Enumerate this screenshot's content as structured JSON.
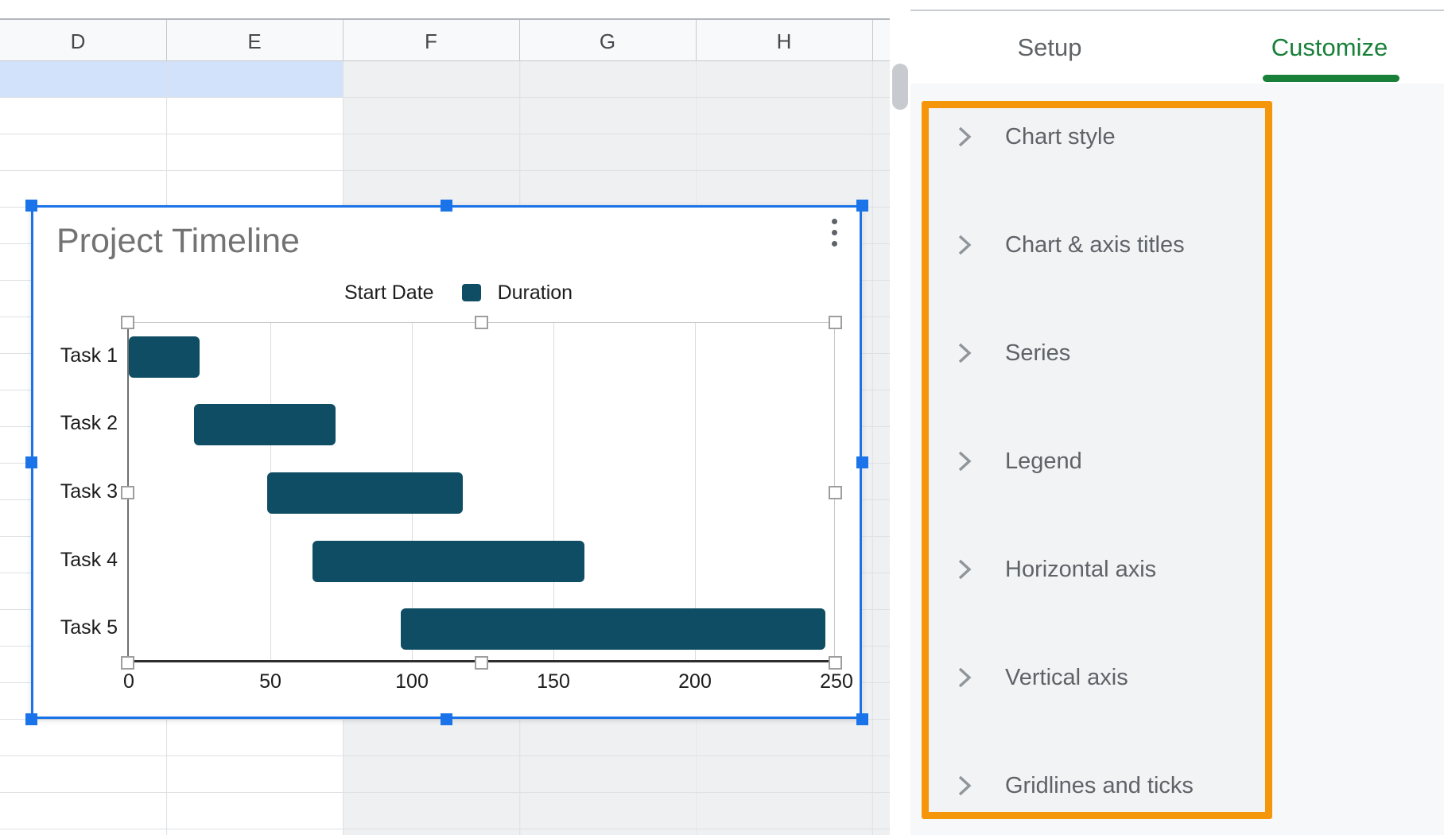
{
  "spreadsheet": {
    "column_headers": [
      "D",
      "E",
      "F",
      "G",
      "H"
    ]
  },
  "chart_editor": {
    "tabs": [
      {
        "label": "Setup",
        "active": false
      },
      {
        "label": "Customize",
        "active": true
      }
    ],
    "active_tab_color": "#188038",
    "highlight_box_color": "#f5960a",
    "sections": [
      {
        "label": "Chart style"
      },
      {
        "label": "Chart & axis titles"
      },
      {
        "label": "Series"
      },
      {
        "label": "Legend"
      },
      {
        "label": "Horizontal axis"
      },
      {
        "label": "Vertical axis"
      },
      {
        "label": "Gridlines and ticks"
      }
    ]
  },
  "chart_data": {
    "type": "bar",
    "orientation": "horizontal",
    "stacked_gantt": true,
    "title": "Project Timeline",
    "title_color": "#737373",
    "categories": [
      "Task 1",
      "Task 2",
      "Task 3",
      "Task 4",
      "Task 5"
    ],
    "series": [
      {
        "name": "Start Date",
        "values": [
          0,
          23,
          49,
          65,
          96
        ],
        "color": "#ffffff",
        "swatch_visible": false
      },
      {
        "name": "Duration",
        "values": [
          25,
          50,
          69,
          96,
          150
        ],
        "color": "#0e4d64",
        "swatch_visible": true
      }
    ],
    "xlim": [
      0,
      250
    ],
    "xticks": [
      0,
      50,
      100,
      150,
      200,
      250
    ],
    "grid": true,
    "legend_position": "top",
    "accent_selection_color": "#1a73e8"
  }
}
